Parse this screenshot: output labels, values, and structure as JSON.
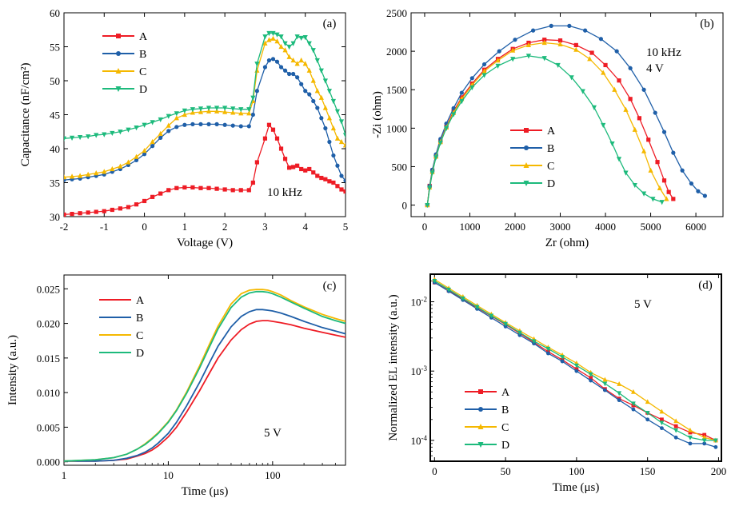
{
  "chart_data": [
    {
      "type": "line",
      "panel": "(a)",
      "xlabel": "Voltage (V)",
      "ylabel": "Capacitance (nF/cm²)",
      "annotation": "10 kHz",
      "xlim": [
        -2,
        5
      ],
      "ylim": [
        30,
        60
      ],
      "xticks": [
        "-2",
        "-1",
        "0",
        "1",
        "2",
        "3",
        "4",
        "5"
      ],
      "yticks": [
        "30",
        "35",
        "40",
        "45",
        "50",
        "55",
        "60"
      ],
      "legend_position": "top-left",
      "x": [
        -2.0,
        -1.8,
        -1.6,
        -1.4,
        -1.2,
        -1.0,
        -0.8,
        -0.6,
        -0.4,
        -0.2,
        0.0,
        0.2,
        0.4,
        0.6,
        0.8,
        1.0,
        1.2,
        1.4,
        1.6,
        1.8,
        2.0,
        2.2,
        2.4,
        2.6,
        2.7,
        2.8,
        3.0,
        3.1,
        3.2,
        3.3,
        3.4,
        3.5,
        3.6,
        3.7,
        3.8,
        3.9,
        4.0,
        4.1,
        4.2,
        4.3,
        4.4,
        4.5,
        4.6,
        4.7,
        4.8,
        4.9,
        5.0
      ],
      "series": [
        {
          "name": "A",
          "color": "#ee1c25",
          "marker": "square",
          "values": [
            30.3,
            30.4,
            30.5,
            30.6,
            30.7,
            30.8,
            31.0,
            31.2,
            31.4,
            31.8,
            32.3,
            32.9,
            33.4,
            33.9,
            34.2,
            34.3,
            34.3,
            34.2,
            34.2,
            34.1,
            34.0,
            33.9,
            33.9,
            33.9,
            35.0,
            38.0,
            41.5,
            43.5,
            42.8,
            41.5,
            40.0,
            38.5,
            37.2,
            37.3,
            37.5,
            37.0,
            36.8,
            37.0,
            36.5,
            36.0,
            35.7,
            35.5,
            35.2,
            35.0,
            34.5,
            34.0,
            33.7
          ]
        },
        {
          "name": "B",
          "color": "#1f5fa8",
          "marker": "circle",
          "values": [
            35.4,
            35.5,
            35.6,
            35.8,
            36.0,
            36.2,
            36.6,
            37.0,
            37.6,
            38.3,
            39.2,
            40.4,
            41.6,
            42.6,
            43.2,
            43.5,
            43.6,
            43.6,
            43.6,
            43.6,
            43.5,
            43.4,
            43.3,
            43.3,
            45.0,
            48.5,
            52.0,
            53.0,
            53.2,
            52.8,
            52.0,
            51.5,
            51.0,
            51.0,
            50.5,
            49.5,
            48.5,
            48.0,
            47.0,
            46.0,
            44.5,
            43.0,
            41.0,
            39.0,
            37.5,
            36.0,
            35.3
          ]
        },
        {
          "name": "C",
          "color": "#f5b800",
          "marker": "triangle-up",
          "values": [
            35.8,
            35.9,
            36.0,
            36.2,
            36.4,
            36.6,
            37.0,
            37.4,
            38.0,
            38.8,
            39.7,
            41.0,
            42.2,
            43.4,
            44.5,
            45.0,
            45.3,
            45.4,
            45.5,
            45.5,
            45.4,
            45.3,
            45.2,
            45.2,
            47.0,
            51.5,
            55.5,
            56.0,
            56.2,
            55.8,
            55.0,
            54.5,
            53.5,
            53.0,
            52.5,
            53.0,
            52.5,
            51.5,
            50.0,
            48.5,
            47.5,
            46.0,
            44.5,
            43.0,
            41.5,
            41.0,
            40.5
          ]
        },
        {
          "name": "D",
          "color": "#1dba7c",
          "marker": "triangle-down",
          "values": [
            41.5,
            41.6,
            41.7,
            41.8,
            42.0,
            42.1,
            42.3,
            42.5,
            42.8,
            43.1,
            43.5,
            43.9,
            44.3,
            44.8,
            45.2,
            45.6,
            45.8,
            45.9,
            46.0,
            46.0,
            46.0,
            45.9,
            45.8,
            45.8,
            47.5,
            52.5,
            56.5,
            57.0,
            57.0,
            56.8,
            56.5,
            55.5,
            55.0,
            55.5,
            56.5,
            56.3,
            56.4,
            55.5,
            54.5,
            53.0,
            51.5,
            50.0,
            48.5,
            47.0,
            45.5,
            44.0,
            42.0
          ]
        }
      ]
    },
    {
      "type": "line",
      "panel": "(b)",
      "xlabel": "Zr (ohm)",
      "ylabel": "-Zi (ohm)",
      "annotation": [
        "10 kHz",
        "4 V"
      ],
      "xlim": [
        -300,
        6600
      ],
      "ylim": [
        -150,
        2500
      ],
      "xticks": [
        "0",
        "1000",
        "2000",
        "3000",
        "4000",
        "5000",
        "6000"
      ],
      "yticks": [
        "0",
        "500",
        "1000",
        "1500",
        "2000",
        "2500"
      ],
      "legend_position": "bottom-center",
      "series": [
        {
          "name": "A",
          "color": "#ee1c25",
          "marker": "square",
          "x": [
            60,
            110,
            170,
            250,
            350,
            480,
            640,
            820,
            1050,
            1320,
            1620,
            1950,
            2300,
            2650,
            3000,
            3350,
            3700,
            4000,
            4300,
            4550,
            4750,
            4950,
            5150,
            5300,
            5400,
            5500
          ],
          "y": [
            0,
            250,
            450,
            640,
            830,
            1020,
            1220,
            1400,
            1580,
            1760,
            1900,
            2030,
            2110,
            2150,
            2140,
            2080,
            1980,
            1820,
            1620,
            1380,
            1130,
            850,
            560,
            320,
            170,
            80
          ]
        },
        {
          "name": "B",
          "color": "#1f5fa8",
          "marker": "circle",
          "x": [
            60,
            110,
            170,
            250,
            350,
            480,
            640,
            820,
            1050,
            1320,
            1650,
            2000,
            2400,
            2800,
            3200,
            3550,
            3900,
            4250,
            4550,
            4850,
            5100,
            5300,
            5500,
            5700,
            5900,
            6050,
            6200
          ],
          "y": [
            0,
            250,
            460,
            660,
            860,
            1060,
            1260,
            1460,
            1650,
            1830,
            2000,
            2150,
            2270,
            2330,
            2330,
            2270,
            2160,
            2000,
            1780,
            1500,
            1200,
            950,
            680,
            450,
            280,
            180,
            120
          ]
        },
        {
          "name": "C",
          "color": "#f5b800",
          "marker": "triangle-up",
          "x": [
            60,
            110,
            170,
            250,
            350,
            480,
            640,
            820,
            1050,
            1320,
            1620,
            1950,
            2300,
            2650,
            3000,
            3350,
            3650,
            3950,
            4200,
            4450,
            4650,
            4850,
            5000,
            5200,
            5350
          ],
          "y": [
            0,
            230,
            430,
            630,
            820,
            1010,
            1200,
            1380,
            1560,
            1740,
            1880,
            2010,
            2080,
            2110,
            2090,
            2020,
            1900,
            1720,
            1500,
            1240,
            980,
            700,
            450,
            220,
            80
          ]
        },
        {
          "name": "D",
          "color": "#1dba7c",
          "marker": "triangle-down",
          "x": [
            60,
            110,
            170,
            250,
            350,
            480,
            640,
            820,
            1050,
            1320,
            1620,
            1950,
            2300,
            2650,
            2950,
            3250,
            3500,
            3750,
            3950,
            4150,
            4300,
            4450,
            4650,
            4850,
            5050,
            5250
          ],
          "y": [
            0,
            220,
            420,
            620,
            810,
            1000,
            1180,
            1350,
            1530,
            1690,
            1810,
            1900,
            1940,
            1910,
            1820,
            1660,
            1480,
            1270,
            1040,
            800,
            600,
            420,
            260,
            150,
            80,
            40
          ]
        }
      ]
    },
    {
      "type": "line",
      "panel": "(c)",
      "xlabel": "Time (μs)",
      "ylabel": "Intensity (a.u.)",
      "annotation": "5 V",
      "xscale": "log",
      "xlim": [
        1,
        500
      ],
      "ylim": [
        -0.0005,
        0.027
      ],
      "xticks": [
        "1",
        "10",
        "100"
      ],
      "yticks": [
        "0.000",
        "0.005",
        "0.010",
        "0.015",
        "0.020",
        "0.025"
      ],
      "legend_position": "top-left",
      "x": [
        1,
        2,
        3,
        4,
        5,
        6,
        7,
        8,
        10,
        12,
        15,
        20,
        25,
        30,
        40,
        50,
        60,
        70,
        80,
        90,
        100,
        120,
        150,
        200,
        300,
        400,
        500
      ],
      "series": [
        {
          "name": "A",
          "color": "#ee1c25",
          "values": [
            0.0001,
            0.0001,
            0.0002,
            0.0004,
            0.0008,
            0.0012,
            0.0017,
            0.0023,
            0.0036,
            0.005,
            0.0072,
            0.0103,
            0.0129,
            0.015,
            0.0176,
            0.0191,
            0.0199,
            0.0203,
            0.0204,
            0.0204,
            0.0203,
            0.0201,
            0.0198,
            0.0193,
            0.0187,
            0.0183,
            0.018
          ]
        },
        {
          "name": "B",
          "color": "#1f5fa8",
          "values": [
            0.0001,
            0.0001,
            0.0002,
            0.0005,
            0.0009,
            0.0014,
            0.002,
            0.0027,
            0.0041,
            0.0057,
            0.0081,
            0.0115,
            0.0144,
            0.0167,
            0.0195,
            0.021,
            0.0217,
            0.022,
            0.022,
            0.0219,
            0.0218,
            0.0215,
            0.021,
            0.0203,
            0.0194,
            0.0189,
            0.0185
          ]
        },
        {
          "name": "C",
          "color": "#f5b800",
          "values": [
            0.0001,
            0.0003,
            0.0006,
            0.0011,
            0.0018,
            0.0026,
            0.0034,
            0.0042,
            0.0058,
            0.0075,
            0.0101,
            0.0139,
            0.0171,
            0.0196,
            0.0228,
            0.0243,
            0.0248,
            0.0249,
            0.0249,
            0.0248,
            0.0246,
            0.0241,
            0.0233,
            0.0224,
            0.0213,
            0.0207,
            0.0203
          ]
        },
        {
          "name": "D",
          "color": "#1dba7c",
          "values": [
            0.0001,
            0.0003,
            0.0006,
            0.0011,
            0.0018,
            0.0025,
            0.0033,
            0.0041,
            0.0057,
            0.0074,
            0.0099,
            0.0136,
            0.0167,
            0.0192,
            0.0223,
            0.0238,
            0.0244,
            0.0246,
            0.0246,
            0.0245,
            0.0243,
            0.0238,
            0.0231,
            0.0222,
            0.021,
            0.0204,
            0.02
          ]
        }
      ]
    },
    {
      "type": "line",
      "panel": "(d)",
      "xlabel": "Time (μs)",
      "ylabel": "Normalized EL intensity (a.u.)",
      "annotation": "5 V",
      "yscale": "log",
      "xlim": [
        -3,
        202
      ],
      "ylim": [
        5e-05,
        0.025
      ],
      "xticks": [
        "0",
        "50",
        "100",
        "150",
        "200"
      ],
      "yticks": [
        "10⁻²",
        "10⁻³",
        "10⁻⁴"
      ],
      "legend_position": "bottom-left",
      "series": [
        {
          "name": "A",
          "color": "#ee1c25",
          "marker": "square",
          "x": [
            0,
            10,
            20,
            30,
            40,
            50,
            60,
            70,
            80,
            90,
            100,
            110,
            120,
            130,
            140,
            150,
            160,
            170,
            180,
            190,
            198
          ],
          "y": [
            0.019,
            0.0145,
            0.011,
            0.0082,
            0.0062,
            0.0047,
            0.0035,
            0.0026,
            0.0019,
            0.00145,
            0.00107,
            0.0008,
            0.00055,
            0.0004,
            0.00032,
            0.00025,
            0.0002,
            0.00016,
            0.00013,
            0.00012,
            0.0001
          ]
        },
        {
          "name": "B",
          "color": "#1f5fa8",
          "marker": "circle",
          "x": [
            0,
            10,
            20,
            30,
            40,
            50,
            60,
            70,
            80,
            90,
            100,
            110,
            120,
            130,
            140,
            150,
            160,
            170,
            180,
            190,
            198
          ],
          "y": [
            0.019,
            0.0142,
            0.0106,
            0.0079,
            0.0059,
            0.0044,
            0.0033,
            0.0025,
            0.0018,
            0.00138,
            0.001,
            0.00073,
            0.00053,
            0.00038,
            0.00028,
            0.0002,
            0.00015,
            0.00011,
            9e-05,
            9e-05,
            8e-05
          ]
        },
        {
          "name": "C",
          "color": "#f5b800",
          "marker": "triangle-up",
          "x": [
            0,
            10,
            20,
            30,
            40,
            50,
            60,
            70,
            80,
            90,
            100,
            110,
            120,
            130,
            140,
            150,
            160,
            170,
            180,
            190,
            198
          ],
          "y": [
            0.021,
            0.0157,
            0.0118,
            0.0088,
            0.0066,
            0.005,
            0.0038,
            0.0029,
            0.0022,
            0.0017,
            0.0013,
            0.00095,
            0.00075,
            0.00065,
            0.0005,
            0.00036,
            0.00026,
            0.00019,
            0.00014,
            0.00011,
            0.0001
          ]
        },
        {
          "name": "D",
          "color": "#1dba7c",
          "marker": "triangle-down",
          "x": [
            0,
            10,
            20,
            30,
            40,
            50,
            60,
            70,
            80,
            90,
            100,
            110,
            120,
            130,
            140,
            150,
            160,
            170,
            180,
            190,
            198
          ],
          "y": [
            0.02,
            0.015,
            0.0112,
            0.0084,
            0.0063,
            0.0048,
            0.0036,
            0.0027,
            0.0021,
            0.0016,
            0.0012,
            0.0009,
            0.00066,
            0.00048,
            0.00034,
            0.00025,
            0.00018,
            0.00014,
            0.00011,
            0.0001,
            0.0001
          ]
        }
      ]
    }
  ]
}
